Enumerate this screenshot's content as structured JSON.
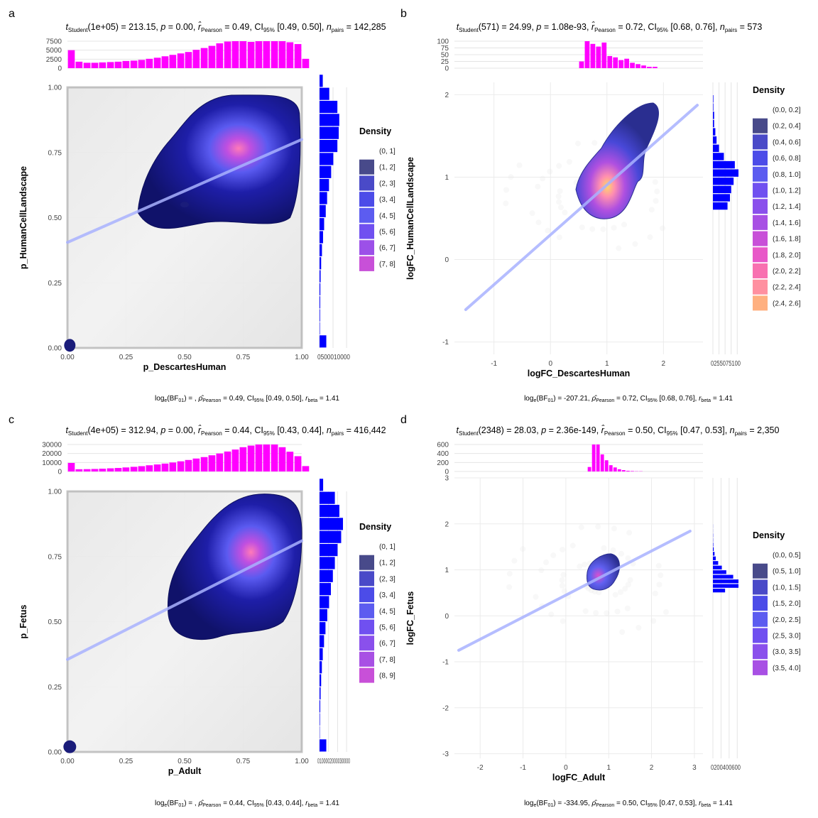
{
  "panels": [
    {
      "letter": "a",
      "subtitle": {
        "t_df": "1e+05",
        "t_val": "213.15",
        "p": "0.00",
        "r": "0.49",
        "ci": "[0.49, 0.50]",
        "n": "142,285"
      },
      "caption": {
        "bf": "",
        "rho": "0.49",
        "ci": "[0.49, 0.50]",
        "rscale": "1.41"
      },
      "xlabel": "p_DescartesHuman",
      "ylabel": "p_HumanCellLandscape",
      "legend_title": "Density",
      "legend_entries": [
        "(0, 1]",
        "(1, 2]",
        "(2, 3]",
        "(3, 4]",
        "(4, 5]",
        "(5, 6]",
        "(6, 7]",
        "(7, 8]"
      ],
      "top_hist_ticks": [
        "0",
        "2500",
        "5000",
        "7500"
      ],
      "side_hist_ticks": [
        "0",
        "5000",
        "10000"
      ]
    },
    {
      "letter": "b",
      "subtitle": {
        "t_df": "571",
        "t_val": "24.99",
        "p": "1.08e-93",
        "r": "0.72",
        "ci": "[0.68, 0.76]",
        "n": "573"
      },
      "caption": {
        "bf": "-207.21",
        "rho": "0.72",
        "ci": "[0.68, 0.76]",
        "rscale": "1.41"
      },
      "xlabel": "logFC_DescartesHuman",
      "ylabel": "logFC_HumanCellLandscape",
      "legend_title": "Density",
      "legend_entries": [
        "(0.0, 0.2]",
        "(0.2, 0.4]",
        "(0.4, 0.6]",
        "(0.6, 0.8]",
        "(0.8, 1.0]",
        "(1.0, 1.2]",
        "(1.2, 1.4]",
        "(1.4, 1.6]",
        "(1.6, 1.8]",
        "(1.8, 2.0]",
        "(2.0, 2.2]",
        "(2.2, 2.4]",
        "(2.4, 2.6]"
      ],
      "top_hist_ticks": [
        "0",
        "25",
        "50",
        "75",
        "100"
      ],
      "side_hist_ticks": [
        "0",
        "25",
        "50",
        "75",
        "100"
      ]
    },
    {
      "letter": "c",
      "subtitle": {
        "t_df": "4e+05",
        "t_val": "312.94",
        "p": "0.00",
        "r": "0.44",
        "ci": "[0.43, 0.44]",
        "n": "416,442"
      },
      "caption": {
        "bf": "",
        "rho": "0.44",
        "ci": "[0.43, 0.44]",
        "rscale": "1.41"
      },
      "xlabel": "p_Adult",
      "ylabel": "p_Fetus",
      "legend_title": "Density",
      "legend_entries": [
        "(0, 1]",
        "(1, 2]",
        "(2, 3]",
        "(3, 4]",
        "(4, 5]",
        "(5, 6]",
        "(6, 7]",
        "(7, 8]",
        "(8, 9]"
      ],
      "top_hist_ticks": [
        "0",
        "10000",
        "20000",
        "30000"
      ],
      "side_hist_ticks": [
        "0",
        "10000",
        "20000",
        "30000"
      ]
    },
    {
      "letter": "d",
      "subtitle": {
        "t_df": "2348",
        "t_val": "28.03",
        "p": "2.36e-149",
        "r": "0.50",
        "ci": "[0.47, 0.53]",
        "n": "2,350"
      },
      "caption": {
        "bf": "-334.95",
        "rho": "0.50",
        "ci": "[0.47, 0.53]",
        "rscale": "1.41"
      },
      "xlabel": "logFC_Adult",
      "ylabel": "logFC_Fetus",
      "legend_title": "Density",
      "legend_entries": [
        "(0.0, 0.5]",
        "(0.5, 1.0]",
        "(1.0, 1.5]",
        "(1.5, 2.0]",
        "(2.0, 2.5]",
        "(2.5, 3.0]",
        "(3.0, 3.5]",
        "(3.5, 4.0]"
      ],
      "top_hist_ticks": [
        "0",
        "200",
        "400",
        "600"
      ],
      "side_hist_ticks": [
        "0",
        "200",
        "400",
        "600"
      ]
    }
  ],
  "colors": {
    "hist": "#FF00FF",
    "side_hist": "#0000FF",
    "fit_line": "#A9B2FF",
    "density_low": "#0D0F5C",
    "density_mid": "#4B4BE8",
    "density_high": "#FF7AB8",
    "density_top": "#FFD966"
  },
  "chart_data": [
    {
      "type": "scatter",
      "panel": "a",
      "xlabel": "p_DescartesHuman",
      "ylabel": "p_HumanCellLandscape",
      "xlim": [
        0,
        1
      ],
      "ylim": [
        0,
        1
      ],
      "x_ticks": [
        0.0,
        0.25,
        0.5,
        0.75,
        1.0
      ],
      "y_ticks": [
        0.0,
        0.25,
        0.5,
        0.75,
        1.0
      ],
      "fit": {
        "intercept": 0.405,
        "slope": 0.395
      },
      "density_peak": [
        0.82,
        0.81
      ],
      "top_hist": {
        "bins": [
          0.0,
          0.033,
          0.067,
          0.1,
          0.133,
          0.167,
          0.2,
          0.233,
          0.267,
          0.3,
          0.333,
          0.367,
          0.4,
          0.433,
          0.467,
          0.5,
          0.533,
          0.567,
          0.6,
          0.633,
          0.667,
          0.7,
          0.733,
          0.767,
          0.8,
          0.833,
          0.867,
          0.9,
          0.933,
          0.967,
          1.0
        ],
        "counts": [
          5000,
          1800,
          1500,
          1500,
          1600,
          1700,
          1800,
          2000,
          2100,
          2300,
          2600,
          2900,
          3300,
          3700,
          4100,
          4500,
          5100,
          5600,
          6200,
          6900,
          7400,
          7800,
          7600,
          7300,
          7500,
          8000,
          7800,
          7500,
          7200,
          6700,
          2600
        ]
      },
      "side_hist": {
        "bins": [
          0.0,
          0.05,
          0.1,
          0.15,
          0.2,
          0.25,
          0.3,
          0.35,
          0.4,
          0.45,
          0.5,
          0.55,
          0.6,
          0.65,
          0.7,
          0.75,
          0.8,
          0.85,
          0.9,
          0.95,
          1.0
        ],
        "counts": [
          2500,
          150,
          200,
          250,
          300,
          400,
          600,
          900,
          1300,
          1700,
          2300,
          2800,
          3500,
          4300,
          5100,
          6600,
          7100,
          7300,
          6600,
          3600,
          1200
        ]
      }
    },
    {
      "type": "scatter",
      "panel": "b",
      "xlabel": "logFC_DescartesHuman",
      "ylabel": "logFC_HumanCellLandscape",
      "xlim": [
        -1.7,
        2.7
      ],
      "ylim": [
        -1.15,
        2.15
      ],
      "x_ticks": [
        -1,
        0,
        1,
        2
      ],
      "y_ticks": [
        -1,
        0,
        1,
        2
      ],
      "fit": {
        "intercept": 0.3,
        "slope": 0.605
      },
      "fit_range": [
        -1.5,
        2.6
      ],
      "density_peak": [
        0.78,
        0.78
      ],
      "top_hist": {
        "bins": [
          0.5,
          0.6,
          0.7,
          0.8,
          0.9,
          1.0,
          1.1,
          1.2,
          1.3,
          1.4,
          1.5,
          1.6,
          1.7,
          1.8,
          1.9,
          2.0
        ],
        "counts": [
          25,
          105,
          90,
          80,
          95,
          45,
          40,
          30,
          35,
          20,
          15,
          10,
          5,
          5,
          0,
          0
        ]
      },
      "side_hist": {
        "bins": [
          0.6,
          0.7,
          0.8,
          0.9,
          1.0,
          1.1,
          1.2,
          1.3,
          1.4,
          1.5,
          1.6,
          1.7,
          1.8,
          1.9
        ],
        "counts": [
          60,
          70,
          75,
          85,
          110,
          90,
          45,
          25,
          15,
          10,
          5,
          5,
          2,
          2
        ]
      }
    },
    {
      "type": "scatter",
      "panel": "c",
      "xlabel": "p_Adult",
      "ylabel": "p_Fetus",
      "xlim": [
        0,
        1
      ],
      "ylim": [
        0,
        1
      ],
      "x_ticks": [
        0.0,
        0.25,
        0.5,
        0.75,
        1.0
      ],
      "y_ticks": [
        0.0,
        0.25,
        0.5,
        0.75,
        1.0
      ],
      "fit": {
        "intercept": 0.355,
        "slope": 0.455
      },
      "density_peak": [
        0.82,
        0.82
      ],
      "top_hist": {
        "bins": [
          0.0,
          0.033,
          0.067,
          0.1,
          0.133,
          0.167,
          0.2,
          0.233,
          0.267,
          0.3,
          0.333,
          0.367,
          0.4,
          0.433,
          0.467,
          0.5,
          0.533,
          0.567,
          0.6,
          0.633,
          0.667,
          0.7,
          0.733,
          0.767,
          0.8,
          0.833,
          0.867,
          0.9,
          0.933,
          0.967,
          1.0
        ],
        "counts": [
          9500,
          2500,
          2600,
          2800,
          3100,
          3500,
          3900,
          4500,
          5200,
          5900,
          6900,
          7800,
          8800,
          10000,
          11300,
          12800,
          14400,
          16000,
          18000,
          20000,
          22200,
          24400,
          27000,
          28800,
          30500,
          32500,
          30000,
          27000,
          22000,
          17000,
          6000
        ]
      },
      "side_hist": {
        "bins": [
          0.0,
          0.05,
          0.1,
          0.15,
          0.2,
          0.25,
          0.3,
          0.35,
          0.4,
          0.45,
          0.5,
          0.55,
          0.6,
          0.65,
          0.7,
          0.75,
          0.8,
          0.85,
          0.9,
          0.95,
          1.0
        ],
        "counts": [
          7500,
          300,
          500,
          800,
          1200,
          1800,
          2600,
          3600,
          5000,
          6600,
          8600,
          10600,
          12600,
          14800,
          17000,
          20000,
          24000,
          26000,
          22000,
          17000,
          4000
        ]
      }
    },
    {
      "type": "scatter",
      "panel": "d",
      "xlabel": "logFC_Adult",
      "ylabel": "logFC_Fetus",
      "xlim": [
        -2.6,
        3.2
      ],
      "ylim": [
        -3.1,
        3.0
      ],
      "x_ticks": [
        -2,
        -1,
        0,
        1,
        2,
        3
      ],
      "y_ticks": [
        -3,
        -2,
        -1,
        0,
        1,
        2,
        3
      ],
      "fit": {
        "intercept": 0.45,
        "slope": 0.48
      },
      "fit_range": [
        -2.5,
        2.9
      ],
      "density_peak": [
        0.75,
        0.8
      ],
      "top_hist": {
        "bins": [
          0.5,
          0.6,
          0.7,
          0.8,
          0.9,
          1.0,
          1.1,
          1.2,
          1.3,
          1.4,
          1.5,
          1.6,
          1.7,
          1.8,
          1.9
        ],
        "counts": [
          100,
          700,
          600,
          380,
          250,
          140,
          90,
          50,
          30,
          15,
          10,
          5,
          5,
          0,
          0
        ]
      },
      "side_hist": {
        "bins": [
          0.5,
          0.6,
          0.7,
          0.8,
          0.9,
          1.0,
          1.1,
          1.2,
          1.3,
          1.4,
          1.5,
          1.6,
          1.7,
          1.8,
          1.9
        ],
        "counts": [
          300,
          700,
          680,
          500,
          330,
          220,
          130,
          70,
          40,
          20,
          10,
          5,
          5,
          2,
          2
        ]
      }
    }
  ]
}
